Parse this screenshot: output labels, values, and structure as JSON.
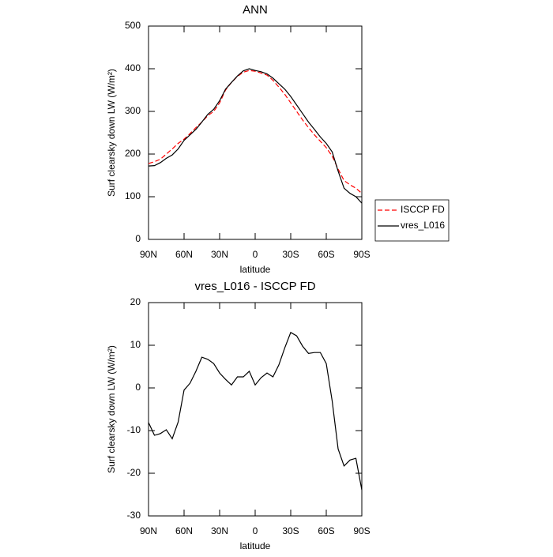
{
  "chart_data": [
    {
      "type": "line",
      "title": "ANN",
      "xlabel": "latitude",
      "ylabel": "Surf clearsky down LW (W/m²)",
      "x": [
        90,
        85,
        80,
        75,
        70,
        65,
        60,
        55,
        50,
        45,
        40,
        35,
        30,
        25,
        20,
        15,
        10,
        5,
        0,
        -5,
        -10,
        -15,
        -20,
        -25,
        -30,
        -35,
        -40,
        -45,
        -50,
        -55,
        -60,
        -65,
        -70,
        -75,
        -80,
        -85,
        -90
      ],
      "series": [
        {
          "name": "ISCCP FD",
          "color": "#ff0000",
          "dashed": true,
          "values": [
            178,
            182,
            188,
            200,
            212,
            225,
            235,
            248,
            262,
            275,
            290,
            300,
            320,
            350,
            368,
            382,
            392,
            396,
            394,
            390,
            385,
            373,
            357,
            340,
            320,
            300,
            280,
            262,
            245,
            230,
            215,
            195,
            165,
            138,
            128,
            120,
            108
          ]
        },
        {
          "name": "vres_L016",
          "color": "#000000",
          "dashed": false,
          "values": [
            172,
            173,
            180,
            190,
            198,
            212,
            232,
            245,
            258,
            275,
            293,
            305,
            325,
            352,
            368,
            383,
            395,
            400,
            396,
            393,
            388,
            378,
            365,
            352,
            335,
            315,
            295,
            275,
            258,
            240,
            225,
            205,
            160,
            120,
            108,
            100,
            85
          ]
        }
      ],
      "xlim": [
        90,
        -90
      ],
      "xticks": [
        {
          "value": 90,
          "label": "90N"
        },
        {
          "value": 60,
          "label": "60N"
        },
        {
          "value": 30,
          "label": "30N"
        },
        0,
        {
          "value": -30,
          "label": "30S"
        },
        {
          "value": -60,
          "label": "60S"
        },
        {
          "value": -90,
          "label": "90S"
        }
      ],
      "ylim": [
        0,
        500
      ],
      "yticks": [
        0,
        100,
        200,
        300,
        400,
        500
      ],
      "legend": "right"
    },
    {
      "type": "line",
      "title": "vres_L016 - ISCCP FD",
      "xlabel": "latitude",
      "ylabel": "Surf clearsky down LW (W/m²)",
      "x": [
        90,
        85,
        80,
        75,
        70,
        65,
        60,
        55,
        50,
        45,
        40,
        35,
        30,
        25,
        20,
        15,
        10,
        5,
        0,
        -5,
        -10,
        -15,
        -20,
        -25,
        -30,
        -35,
        -40,
        -45,
        -50,
        -55,
        -60,
        -65,
        -70,
        -75,
        -80,
        -85,
        -90
      ],
      "values": [
        -8.1,
        -11.1,
        -10.7,
        -9.8,
        -11.9,
        -8,
        -0.5,
        1.1,
        3.9,
        7.2,
        6.7,
        5.7,
        3.5,
        2,
        0.7,
        2.6,
        2.6,
        3.9,
        0.7,
        2.4,
        3.5,
        2.6,
        5.4,
        9.4,
        13,
        12.2,
        9.8,
        8.1,
        8.3,
        8.3,
        5.7,
        -3.1,
        -14.3,
        -18.3,
        -16.9,
        -16.5,
        -23.9
      ],
      "color": "#000000",
      "xlim": [
        90,
        -90
      ],
      "xticks": [
        {
          "value": 90,
          "label": "90N"
        },
        {
          "value": 60,
          "label": "60N"
        },
        {
          "value": 30,
          "label": "30N"
        },
        0,
        {
          "value": -30,
          "label": "30S"
        },
        {
          "value": -60,
          "label": "60S"
        },
        {
          "value": -90,
          "label": "90S"
        }
      ],
      "ylim": [
        -30,
        20
      ],
      "yticks": [
        -30,
        -20,
        -10,
        0,
        10,
        20
      ]
    }
  ]
}
